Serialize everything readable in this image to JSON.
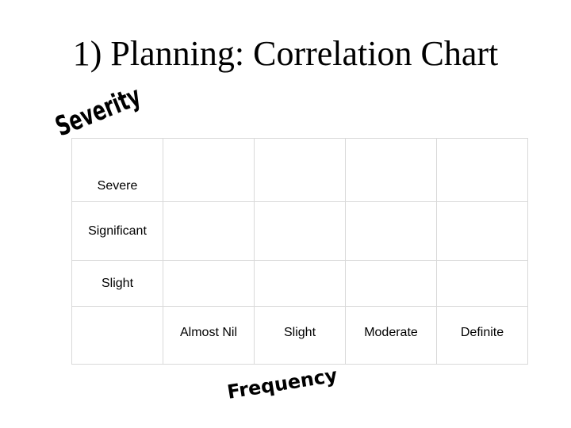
{
  "title": "1) Planning: Correlation Chart",
  "wordart": {
    "severity": "Severity",
    "frequency": "Frequency"
  },
  "matrix": {
    "severity_levels": [
      "Severe",
      "Significant",
      "Slight"
    ],
    "frequency_levels": [
      "Almost Nil",
      "Slight",
      "Moderate",
      "Definite"
    ]
  }
}
